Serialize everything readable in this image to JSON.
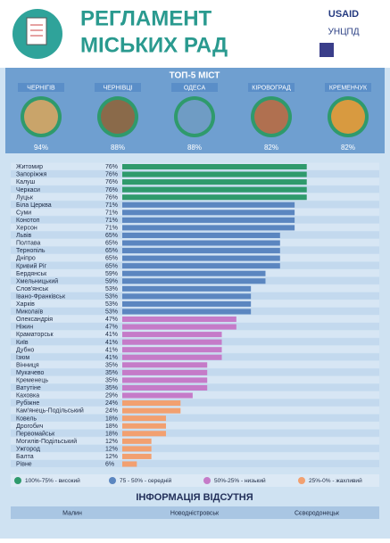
{
  "header": {
    "title_line1": "РЕГЛАМЕНТ",
    "title_line2": "МІСЬКИХ РАД",
    "logos": [
      "USAID",
      "УНЦПД"
    ]
  },
  "top5": {
    "title": "ТОП-5 МІСТ",
    "cities": [
      {
        "name": "ЧЕРНІГІВ",
        "value_label": "94%"
      },
      {
        "name": "ЧЕРНІВЦІ",
        "value_label": "88%"
      },
      {
        "name": "ОДЕСА",
        "value_label": "88%"
      },
      {
        "name": "КІРОВОГРАД",
        "value_label": "82%"
      },
      {
        "name": "КРЕМЕНЧУК",
        "value_label": "82%"
      }
    ]
  },
  "chart_data": {
    "type": "bar",
    "orientation": "horizontal",
    "series": [
      {
        "name": "100%-75% - високий",
        "color": "#2f9a6c",
        "categories": [
          "Житомир",
          "Запоріжжя",
          "Калуш",
          "Черкаси",
          "Луцьк"
        ],
        "values": [
          76,
          76,
          76,
          76,
          76
        ],
        "value_labels": [
          "76%",
          "76%",
          "76%",
          "76%",
          "76%"
        ]
      },
      {
        "name": "75 - 50% - середній",
        "color": "#5b86c0",
        "categories": [
          "Біла Церква",
          "Суми",
          "Конотоп",
          "Херсон",
          "Львів",
          "Полтава",
          "Тернопіль",
          "Дніпро",
          "Кривий Ріг",
          "Бердянськ",
          "Хмельницький",
          "Слов'янськ",
          "Івано-Франківськ",
          "Харків",
          "Миколаїв"
        ],
        "values": [
          71,
          71,
          71,
          71,
          65,
          65,
          65,
          65,
          65,
          59,
          59,
          53,
          53,
          53,
          53
        ],
        "value_labels": [
          "71%",
          "71%",
          "71%",
          "71%",
          "65%",
          "65%",
          "65%",
          "65%",
          "65%",
          "59%",
          "59%",
          "53%",
          "53%",
          "53%",
          "53%"
        ]
      },
      {
        "name": "50%-25% - низький",
        "color": "#c57bc8",
        "categories": [
          "Олександрія",
          "Ніжин",
          "Краматорськ",
          "Київ",
          "Дубно",
          "Ізюм",
          "Вінниця",
          "Мукачево",
          "Кременець",
          "Ватутіне",
          "Каховка"
        ],
        "values": [
          47,
          47,
          41,
          41,
          41,
          41,
          35,
          35,
          35,
          35,
          29
        ],
        "value_labels": [
          "47%",
          "47%",
          "41%",
          "41%",
          "41%",
          "41%",
          "35%",
          "35%",
          "35%",
          "35%",
          "29%"
        ]
      },
      {
        "name": "25%-0% - жахливий",
        "color": "#f2a070",
        "categories": [
          "Рубіжне",
          "Кам'янець-Подільський",
          "Ковель",
          "Дрогобич",
          "Первомайськ",
          "Могилів-Подільський",
          "Ужгород",
          "Балта",
          "Рівне"
        ],
        "values": [
          24,
          24,
          18,
          18,
          18,
          12,
          12,
          12,
          6
        ],
        "value_labels": [
          "24%",
          "24%",
          "18%",
          "18%",
          "18%",
          "12%",
          "12%",
          "12%",
          "6%"
        ]
      }
    ]
  },
  "missing": {
    "title": "ІНФОРМАЦІЯ ВІДСУТНЯ",
    "cities": [
      "Малин",
      "Новодністровськ",
      "Сєвєродонецьк"
    ]
  }
}
